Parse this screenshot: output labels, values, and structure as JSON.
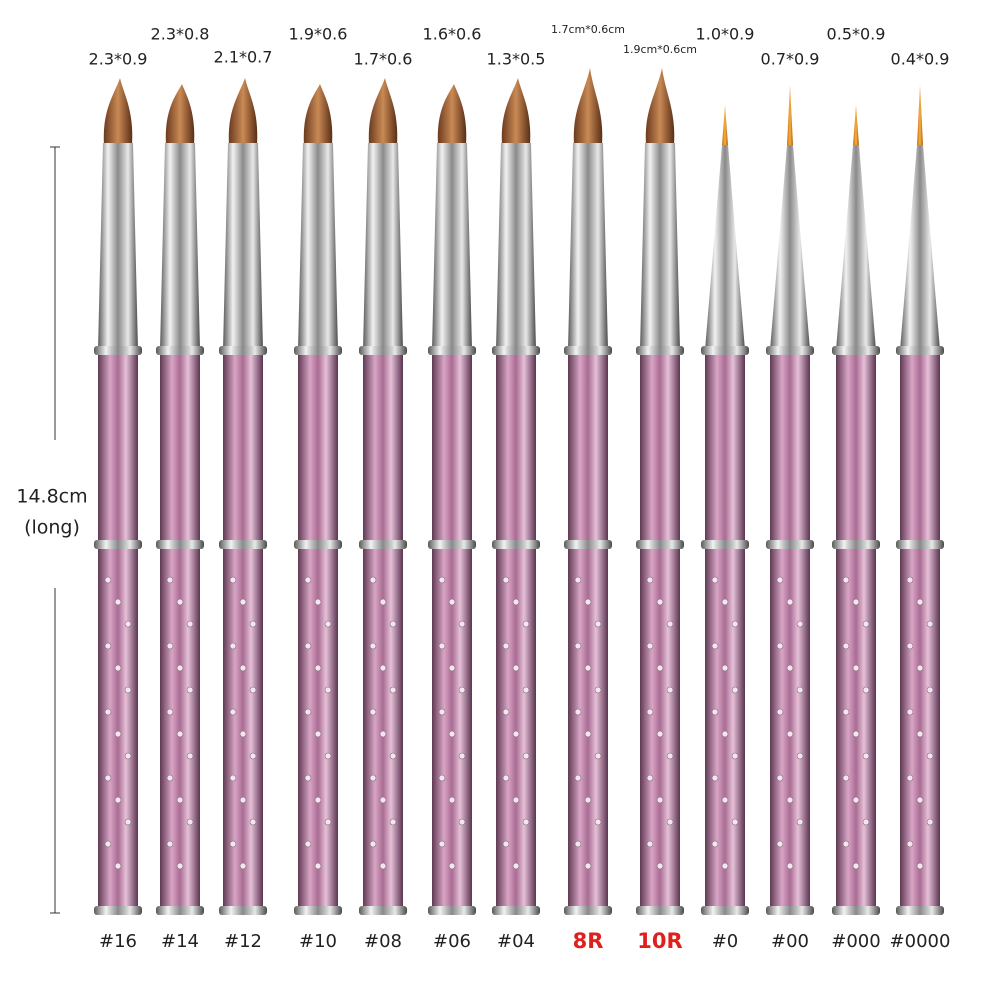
{
  "dimension": {
    "length": "14.8cm",
    "note": "(long)"
  },
  "brushes": [
    {
      "size": "2.3*0.9",
      "name": "#16"
    },
    {
      "size": "2.3*0.8",
      "name": "#14"
    },
    {
      "size": "2.1*0.7",
      "name": "#12"
    },
    {
      "size": "1.9*0.6",
      "name": "#10"
    },
    {
      "size": "1.7*0.6",
      "name": "#08"
    },
    {
      "size": "1.6*0.6",
      "name": "#06"
    },
    {
      "size": "1.3*0.5",
      "name": "#04"
    },
    {
      "size": "1.7cm*0.6cm",
      "name": "8R"
    },
    {
      "size": "1.9cm*0.6cm",
      "name": "10R"
    },
    {
      "size": "1.0*0.9",
      "name": "#0"
    },
    {
      "size": "0.7*0.9",
      "name": "#00"
    },
    {
      "size": "0.5*0.9",
      "name": "#000"
    },
    {
      "size": "0.4*0.9",
      "name": "#0000"
    }
  ]
}
